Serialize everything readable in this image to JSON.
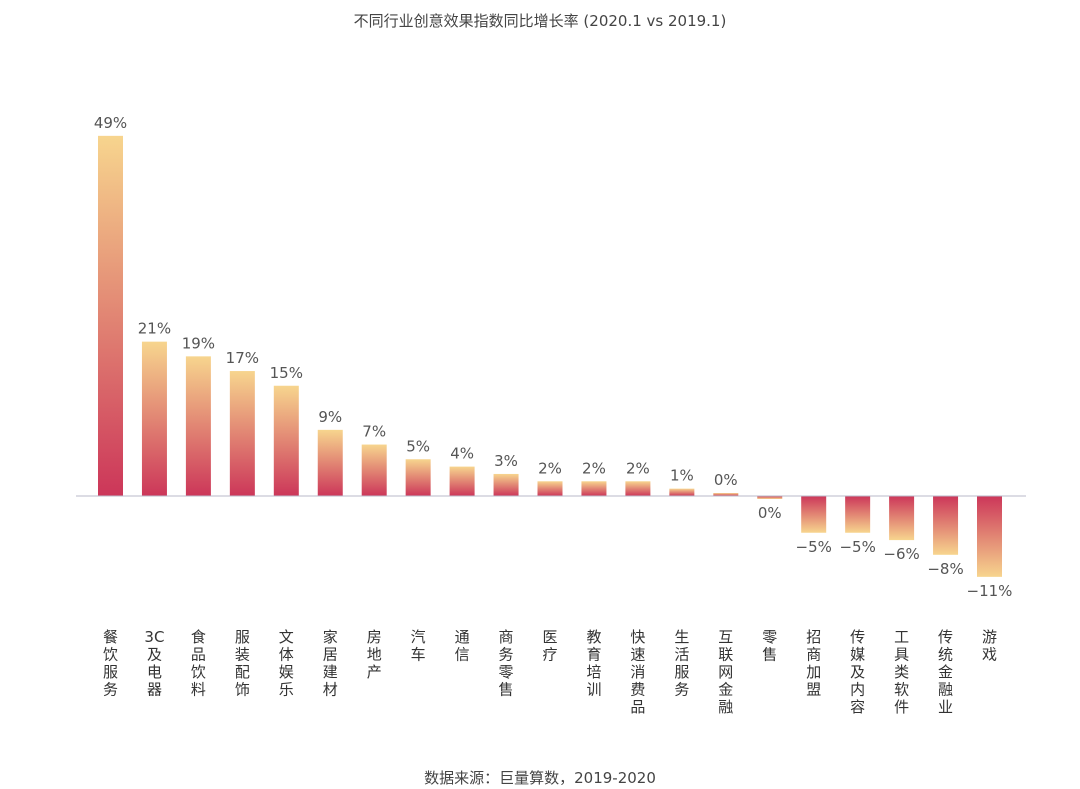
{
  "chart_data": {
    "type": "bar",
    "title": "不同行业创意效果指数同比增长率 (2020.1 vs 2019.1)",
    "source": "数据来源：巨量算数，2019-2020",
    "categories": [
      "餐饮服务",
      "3C及电器",
      "食品饮料",
      "服装配饰",
      "文体娱乐",
      "家居建材",
      "房地产",
      "汽车",
      "通信",
      "商务零售",
      "医疗",
      "教育培训",
      "快速消费品",
      "生活服务",
      "互联网金融",
      "零售",
      "招商加盟",
      "传媒及内容",
      "工具类软件",
      "传统金融业",
      "游戏"
    ],
    "values": [
      49,
      21,
      19,
      17,
      15,
      9,
      7,
      5,
      4,
      3,
      2,
      2,
      2,
      1,
      0.4,
      -0.4,
      -5,
      -5,
      -6,
      -8,
      -11
    ],
    "labels": [
      "49%",
      "21%",
      "19%",
      "17%",
      "15%",
      "9%",
      "7%",
      "5%",
      "4%",
      "3%",
      "2%",
      "2%",
      "2%",
      "1%",
      "0%",
      "0%",
      "−5%",
      "−5%",
      "−6%",
      "−8%",
      "−11%"
    ],
    "colors": {
      "top": "#f7d58e",
      "bottom": "#cc3659",
      "axis": "#b9b9c8"
    },
    "grid": false,
    "legend": "none"
  }
}
